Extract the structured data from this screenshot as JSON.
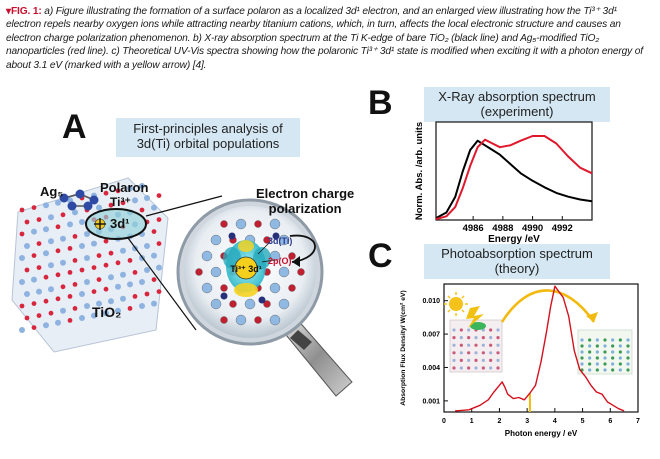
{
  "caption": {
    "fig_label": "▾FIG. 1:",
    "text": " a) Figure illustrating the formation of a surface polaron as a localized 3d¹ electron, and an enlarged view illustrating how the Ti³⁺ 3d¹ electron repels nearby oxygen ions while attracting nearby titanium cations, which, in turn, affects the local electronic structure and causes an electron charge polarization phenomenon. b) X-ray absorption spectrum at the Ti K-edge of bare TiO₂ (black line) and Ag₅-modified TiO₂ nanoparticles (red line). c) Theoretical UV-Vis spectra showing how the polaronic Ti³⁺ 3d¹ state is modified when exciting it with a photon energy of about 3.1 eV (marked with a yellow arrow) [4]."
  },
  "panel_a": {
    "letter": "A",
    "title_line1": "First-principles analysis of",
    "title_line2": "3d(Ti) orbital populations",
    "ag5_label": "Ag₅",
    "polaron_label": "Polaron",
    "ti3_label": "Ti³⁺",
    "tio2_label": "TiO₂",
    "electron_label": "3d¹",
    "charge_line1": "Electron charge",
    "charge_line2": "polarization",
    "orbital_ti": "3d(Ti)",
    "orbital_o": "2p(O)",
    "center_label": "Ti³⁺ 3d¹"
  },
  "panel_b": {
    "letter": "B",
    "title_line1": "X-Ray absorption spectrum",
    "title_line2": "(experiment)"
  },
  "panel_c": {
    "letter": "C",
    "title_line1": "Photoabsorption spectrum",
    "title_line2": "(theory)"
  },
  "chart_data": [
    {
      "type": "line",
      "title": "",
      "xlabel": "Energy /eV",
      "ylabel": "Norm. Abs. /arb. units",
      "xlim": [
        4983.5,
        4994
      ],
      "ylim": [
        0,
        1.05
      ],
      "x_ticks": [
        4986,
        4988,
        4990,
        4992
      ],
      "y_ticks": [],
      "grid": false,
      "series": [
        {
          "color": "#000000",
          "x": [
            4983.5,
            4984.2,
            4984.8,
            4985.3,
            4985.8,
            4986.3,
            4986.8,
            4987.3,
            4987.8,
            4988.5,
            4989.2,
            4990,
            4990.8,
            4991.6,
            4992.4,
            4993.2,
            4994
          ],
          "y": [
            0.02,
            0.08,
            0.25,
            0.52,
            0.75,
            0.85,
            0.8,
            0.75,
            0.7,
            0.6,
            0.5,
            0.42,
            0.35,
            0.29,
            0.25,
            0.22,
            0.2
          ]
        },
        {
          "color": "#e0182c",
          "x": [
            4983.5,
            4984.2,
            4984.8,
            4985.3,
            4985.8,
            4986.3,
            4986.8,
            4987.3,
            4987.8,
            4988.5,
            4989.2,
            4990,
            4990.8,
            4991.6,
            4992.4,
            4993.2,
            4994
          ],
          "y": [
            0.01,
            0.04,
            0.14,
            0.34,
            0.58,
            0.78,
            0.86,
            0.82,
            0.78,
            0.8,
            0.85,
            0.9,
            0.9,
            0.82,
            0.68,
            0.56,
            0.5
          ]
        }
      ]
    },
    {
      "type": "line",
      "title": "",
      "xlabel": "Photon energy / eV",
      "ylabel": "Absorption Flux Density/ W(cm² eV)",
      "xlim": [
        0,
        7
      ],
      "ylim": [
        0,
        0.0115
      ],
      "x_ticks": [
        0,
        1,
        2,
        3,
        4,
        5,
        6,
        7
      ],
      "y_ticks": [
        0.001,
        0.004,
        0.007,
        0.01
      ],
      "y_tick_labels": [
        "0.001",
        "0.004",
        "0.007",
        "0.010"
      ],
      "grid": false,
      "marker": {
        "x": 3.1,
        "color": "#f2b90f"
      },
      "series": [
        {
          "color": "#d3121f",
          "x": [
            0.4,
            0.9,
            1.3,
            1.6,
            1.8,
            2.0,
            2.1,
            2.2,
            2.3,
            2.5,
            2.7,
            2.9,
            3.1,
            3.3,
            3.5,
            3.7,
            3.85,
            4.0,
            4.15,
            4.3,
            4.5,
            4.7,
            4.9,
            5.1,
            5.3,
            5.5,
            5.7,
            5.9,
            6.1,
            6.3,
            6.5
          ],
          "y": [
            0.0001,
            0.0002,
            0.0006,
            0.0011,
            0.0018,
            0.0024,
            0.0027,
            0.0022,
            0.0016,
            0.0012,
            0.0013,
            0.0011,
            0.0017,
            0.0024,
            0.0045,
            0.0072,
            0.0095,
            0.0113,
            0.0108,
            0.0103,
            0.0086,
            0.0055,
            0.0038,
            0.0032,
            0.0024,
            0.0018,
            0.0016,
            0.0009,
            0.0006,
            0.0003,
            0.0001
          ]
        }
      ]
    }
  ]
}
